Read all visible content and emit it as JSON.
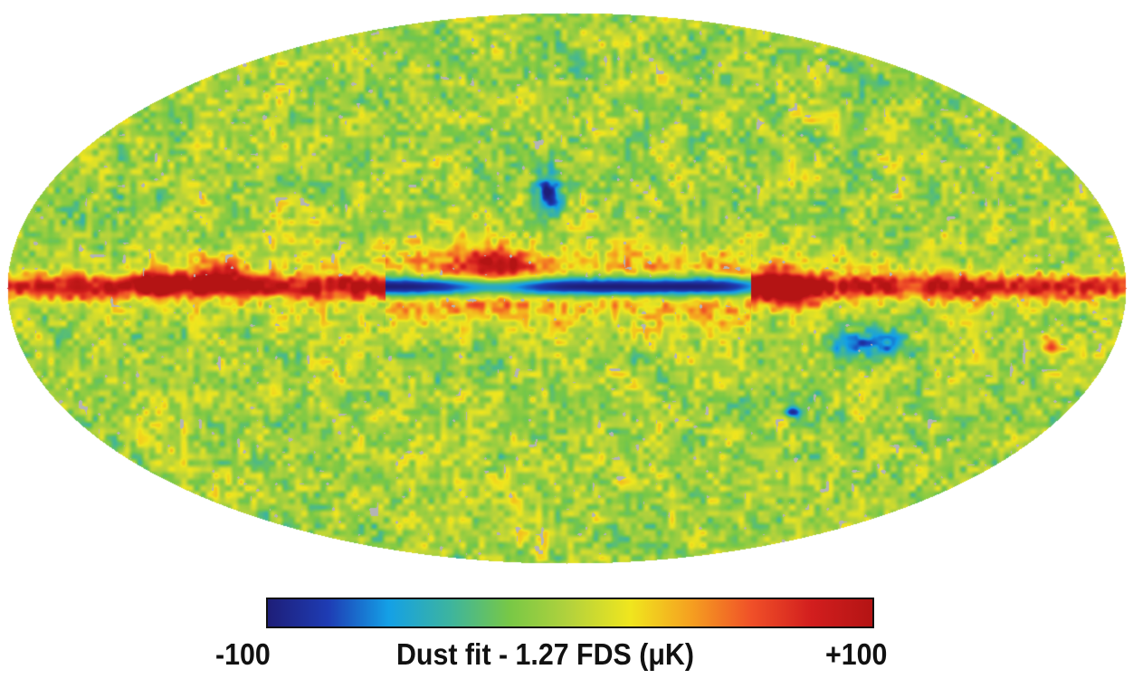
{
  "figure": {
    "projection": "Mollweide all-sky map",
    "colormap": [
      "#1e1e78",
      "#1e3cb4",
      "#14a0e6",
      "#3cb4a0",
      "#78c846",
      "#b4d23c",
      "#f0e61e",
      "#f5a020",
      "#f05028",
      "#d21e1e",
      "#b41414"
    ],
    "mask_color": "#b4b4b4"
  },
  "colorbar": {
    "min_label": "-100",
    "max_label": "+100",
    "title": "Dust fit - 1.27 FDS (μK)"
  }
}
